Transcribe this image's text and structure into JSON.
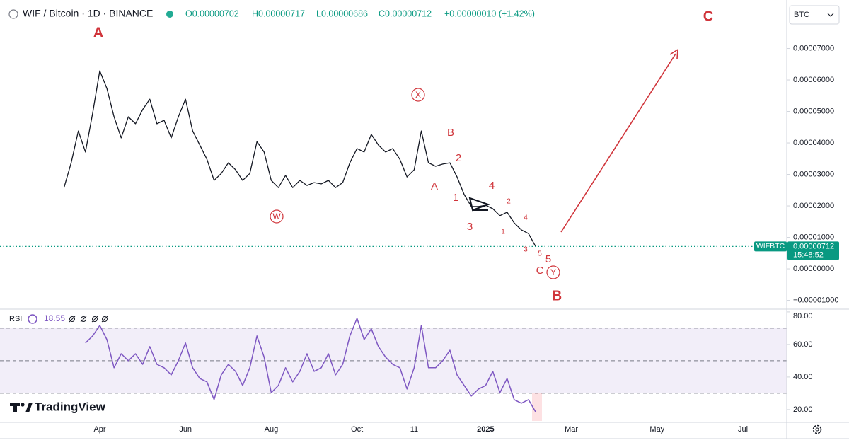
{
  "chart_data": [
    {
      "type": "line",
      "title": "WIF / Bitcoin · 1D · BINANCE",
      "ohlc": [
        "O0.00000702",
        "H0.00000717",
        "L0.00000686",
        "C0.00000712",
        "+0.00000010 (+1.42%)"
      ],
      "categories": [
        null,
        null,
        null,
        null,
        null,
        null,
        "Apr",
        null,
        null,
        null,
        null,
        null,
        null,
        null,
        null,
        null,
        null,
        null,
        "Jun",
        null,
        null,
        null,
        null,
        null,
        null,
        null,
        null,
        null,
        null,
        null,
        "Aug",
        null,
        null,
        null,
        null,
        null,
        null,
        null,
        null,
        null,
        null,
        null,
        "Oct",
        null,
        null,
        null,
        null,
        null,
        null,
        null,
        "11",
        null,
        null,
        null,
        null,
        null,
        null,
        null,
        null,
        null,
        "2025",
        null,
        null,
        null,
        null,
        null,
        null,
        null,
        null,
        null,
        null,
        null,
        "Mar",
        null,
        null,
        null,
        null,
        null,
        null,
        null,
        null,
        null,
        null,
        null,
        "May",
        null,
        null,
        null,
        null,
        null,
        null,
        null,
        null,
        null,
        null,
        null,
        "Jul",
        null,
        null,
        null,
        null,
        null
      ],
      "series": [
        {
          "name": "WIFBTC",
          "color": "#131722",
          "values": [
            null,
            2.58e-05,
            3.37e-05,
            4.38e-05,
            3.71e-05,
            4.94e-05,
            6.29e-05,
            5.73e-05,
            4.83e-05,
            4.16e-05,
            4.83e-05,
            4.61e-05,
            5.06e-05,
            5.39e-05,
            4.61e-05,
            4.72e-05,
            4.16e-05,
            4.83e-05,
            5.39e-05,
            4.38e-05,
            3.93e-05,
            3.48e-05,
            2.81e-05,
            3.03e-05,
            3.37e-05,
            3.15e-05,
            2.81e-05,
            3.03e-05,
            4.04e-05,
            3.71e-05,
            2.81e-05,
            2.58e-05,
            2.97e-05,
            2.58e-05,
            2.81e-05,
            2.65e-05,
            2.74e-05,
            2.7e-05,
            2.81e-05,
            2.58e-05,
            2.74e-05,
            3.37e-05,
            3.82e-05,
            3.71e-05,
            4.27e-05,
            3.93e-05,
            3.71e-05,
            3.82e-05,
            3.48e-05,
            2.92e-05,
            3.15e-05,
            4.38e-05,
            3.37e-05,
            3.26e-05,
            3.33e-05,
            3.37e-05,
            2.92e-05,
            2.36e-05,
            1.98e-05,
            1.98e-05,
            2.02e-05,
            1.91e-05,
            1.69e-05,
            1.8e-05,
            1.46e-05,
            1.24e-05,
            1.12e-05,
            7.12e-06,
            null,
            null,
            null,
            null,
            null,
            null,
            null,
            null,
            null,
            null,
            null,
            null,
            null,
            null,
            null,
            null,
            null,
            null,
            null,
            null,
            null,
            null,
            null,
            null,
            null,
            null,
            null,
            null,
            null,
            null,
            null,
            null,
            null,
            null
          ]
        }
      ],
      "last_price": 7.12e-06,
      "last_price_color": "#089981",
      "countdown": "15:48:52",
      "ylim": [
        -1.28e-05,
        8.54e-05
      ],
      "yticks": [
        {
          "value": 7e-05,
          "label": "0.00007000"
        },
        {
          "value": 6e-05,
          "label": "0.00006000"
        },
        {
          "value": 5e-05,
          "label": "0.00005000"
        },
        {
          "value": 4e-05,
          "label": "0.00004000"
        },
        {
          "value": 3e-05,
          "label": "0.00003000"
        },
        {
          "value": 2e-05,
          "label": "0.00002000"
        },
        {
          "value": 1e-05,
          "label": "0.00001000"
        },
        {
          "value": 0,
          "label": "0.00000000"
        },
        {
          "value": -1e-05,
          "label": "−0.00001000"
        }
      ],
      "annotations": [
        "A",
        "C",
        "B",
        "X",
        "W",
        "Y",
        "B",
        "2",
        "A",
        "1",
        "3",
        "4",
        "2",
        "4",
        "1",
        "3",
        "5",
        "5",
        "C"
      ],
      "annotation_color": "#d0343a"
    },
    {
      "type": "line",
      "series": [
        {
          "name": "RSI",
          "color": "#7e57c2",
          "values": [
            null,
            null,
            null,
            null,
            60.9,
            65.2,
            71.7,
            63,
            45.7,
            54.3,
            50,
            54.3,
            47.8,
            58.7,
            47.8,
            45.7,
            41.3,
            50,
            60.9,
            45.7,
            39.1,
            37,
            26.1,
            41.3,
            47.8,
            43.5,
            34.8,
            45.7,
            65.2,
            52.2,
            30.4,
            34.8,
            45.7,
            37,
            43.5,
            54.3,
            43.5,
            45.7,
            54.3,
            41.3,
            47.8,
            65.2,
            76.1,
            63,
            69.6,
            58.7,
            52.2,
            47.8,
            45.7,
            32.6,
            45.7,
            71.7,
            45.7,
            45.7,
            50,
            56.5,
            41.3,
            34.8,
            28.3,
            32.6,
            34.8,
            43.5,
            30.4,
            39.1,
            26.1,
            23.9,
            26.1,
            18.55,
            null,
            null,
            null,
            null,
            null,
            null,
            null,
            null,
            null,
            null,
            null,
            null,
            null,
            null,
            null,
            null,
            null,
            null,
            null,
            null,
            null,
            null,
            null,
            null,
            null,
            null,
            null,
            null,
            null,
            null,
            null,
            null,
            null,
            null
          ]
        }
      ],
      "last_value": 18.55,
      "ylim": [
        13,
        81.7
      ],
      "yticks": [
        {
          "value": 80,
          "label": "80.00"
        },
        {
          "value": 60,
          "label": "60.00"
        },
        {
          "value": 40,
          "label": "40.00"
        },
        {
          "value": 20,
          "label": "20.00"
        }
      ],
      "levels": [
        30,
        50,
        70
      ]
    }
  ],
  "ui": {
    "symbol_button": "BTC",
    "logo": "TradingView"
  }
}
